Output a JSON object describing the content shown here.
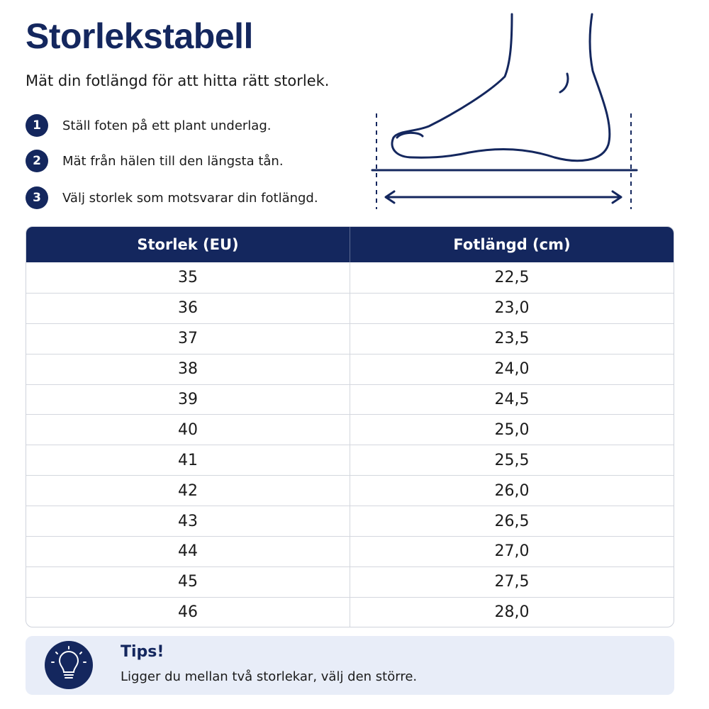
{
  "header": {
    "title": "Storlekstabell",
    "subtitle": "Mät din fotlängd för att hitta rätt storlek."
  },
  "steps": [
    {
      "number": "1",
      "text": "Ställ foten på ett plant underlag."
    },
    {
      "number": "2",
      "text": "Mät från hälen till den längsta tån."
    },
    {
      "number": "3",
      "text": "Välj storlek som motsvarar din fotlängd."
    }
  ],
  "table": {
    "headers": [
      "Storlek (EU)",
      "Fotlängd (cm)"
    ],
    "rows": [
      [
        "35",
        "22,5"
      ],
      [
        "36",
        "23,0"
      ],
      [
        "37",
        "23,5"
      ],
      [
        "38",
        "24,0"
      ],
      [
        "39",
        "24,5"
      ],
      [
        "40",
        "25,0"
      ],
      [
        "41",
        "25,5"
      ],
      [
        "42",
        "26,0"
      ],
      [
        "43",
        "26,5"
      ],
      [
        "44",
        "27,0"
      ],
      [
        "45",
        "27,5"
      ],
      [
        "46",
        "28,0"
      ]
    ]
  },
  "tip": {
    "title": "Tips!",
    "text": "Ligger du mellan två storlekar, välj den större."
  }
}
